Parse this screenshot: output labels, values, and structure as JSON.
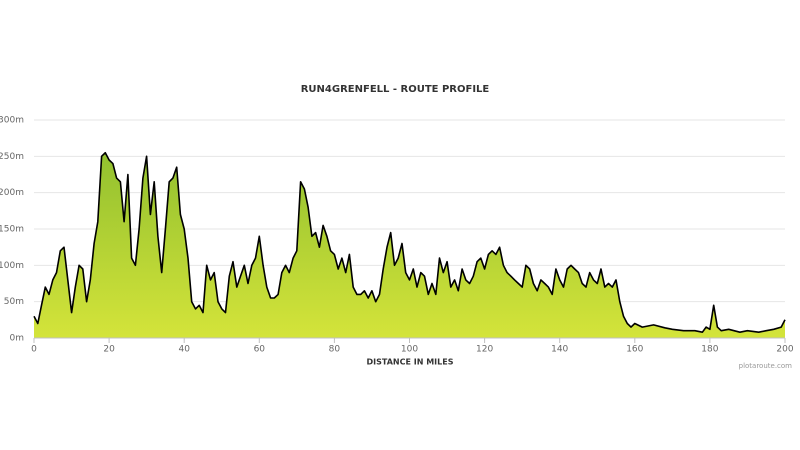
{
  "chart_data": {
    "type": "area",
    "title": "RUN4GRENFELL - ROUTE PROFILE",
    "x_label": "DISTANCE IN MILES",
    "credit": "plotaroute.com",
    "fill_color": "#92c02f",
    "line_color": "#000000",
    "grid": true,
    "xlim": [
      0,
      200
    ],
    "xticks": [
      0,
      20,
      40,
      60,
      80,
      100,
      120,
      140,
      160,
      180,
      200
    ],
    "ylim": [
      0,
      300
    ],
    "yticks": [
      {
        "value": 0,
        "label": "0m"
      },
      {
        "value": 50,
        "label": "50m"
      },
      {
        "value": 100,
        "label": "100m"
      },
      {
        "value": 150,
        "label": "150m"
      },
      {
        "value": 200,
        "label": "200m"
      },
      {
        "value": 250,
        "label": "250m"
      },
      {
        "value": 300,
        "label": "300m"
      }
    ],
    "x": [
      0,
      1,
      2,
      3,
      4,
      5,
      6,
      7,
      8,
      9,
      10,
      11,
      12,
      13,
      14,
      15,
      16,
      17,
      18,
      19,
      20,
      21,
      22,
      23,
      24,
      25,
      26,
      27,
      28,
      29,
      30,
      31,
      32,
      33,
      34,
      35,
      36,
      37,
      38,
      39,
      40,
      41,
      42,
      43,
      44,
      45,
      46,
      47,
      48,
      49,
      50,
      51,
      52,
      53,
      54,
      55,
      56,
      57,
      58,
      59,
      60,
      61,
      62,
      63,
      64,
      65,
      66,
      67,
      68,
      69,
      70,
      71,
      72,
      73,
      74,
      75,
      76,
      77,
      78,
      79,
      80,
      81,
      82,
      83,
      84,
      85,
      86,
      87,
      88,
      89,
      90,
      91,
      92,
      93,
      94,
      95,
      96,
      97,
      98,
      99,
      100,
      101,
      102,
      103,
      104,
      105,
      106,
      107,
      108,
      109,
      110,
      111,
      112,
      113,
      114,
      115,
      116,
      117,
      118,
      119,
      120,
      121,
      122,
      123,
      124,
      125,
      126,
      127,
      128,
      129,
      130,
      131,
      132,
      133,
      134,
      135,
      136,
      137,
      138,
      139,
      140,
      141,
      142,
      143,
      144,
      145,
      146,
      147,
      148,
      149,
      150,
      151,
      152,
      153,
      154,
      155,
      156,
      157,
      158,
      159,
      160,
      162,
      165,
      168,
      170,
      173,
      176,
      178,
      179,
      180,
      181,
      182,
      183,
      185,
      188,
      190,
      193,
      195,
      197,
      199,
      200
    ],
    "values": [
      30,
      20,
      45,
      70,
      60,
      80,
      90,
      120,
      125,
      80,
      35,
      70,
      100,
      95,
      50,
      80,
      130,
      160,
      250,
      255,
      245,
      240,
      220,
      215,
      160,
      225,
      110,
      100,
      150,
      220,
      250,
      170,
      215,
      140,
      90,
      150,
      215,
      220,
      235,
      170,
      150,
      110,
      50,
      40,
      45,
      35,
      100,
      80,
      90,
      50,
      40,
      35,
      85,
      105,
      70,
      85,
      100,
      75,
      100,
      110,
      140,
      100,
      70,
      55,
      55,
      60,
      90,
      100,
      90,
      110,
      120,
      215,
      205,
      180,
      140,
      145,
      125,
      155,
      140,
      120,
      115,
      95,
      110,
      90,
      115,
      70,
      60,
      60,
      65,
      55,
      65,
      50,
      60,
      95,
      125,
      145,
      100,
      110,
      130,
      90,
      80,
      95,
      70,
      90,
      85,
      60,
      75,
      60,
      110,
      90,
      105,
      70,
      80,
      65,
      95,
      80,
      75,
      85,
      105,
      110,
      95,
      115,
      120,
      115,
      125,
      100,
      90,
      85,
      80,
      75,
      70,
      100,
      95,
      75,
      65,
      80,
      75,
      70,
      60,
      95,
      80,
      70,
      95,
      100,
      95,
      90,
      75,
      70,
      90,
      80,
      75,
      95,
      70,
      75,
      70,
      80,
      50,
      30,
      20,
      15,
      20,
      15,
      18,
      14,
      12,
      10,
      10,
      8,
      15,
      12,
      45,
      15,
      10,
      12,
      8,
      10,
      8,
      10,
      12,
      15,
      25
    ]
  }
}
